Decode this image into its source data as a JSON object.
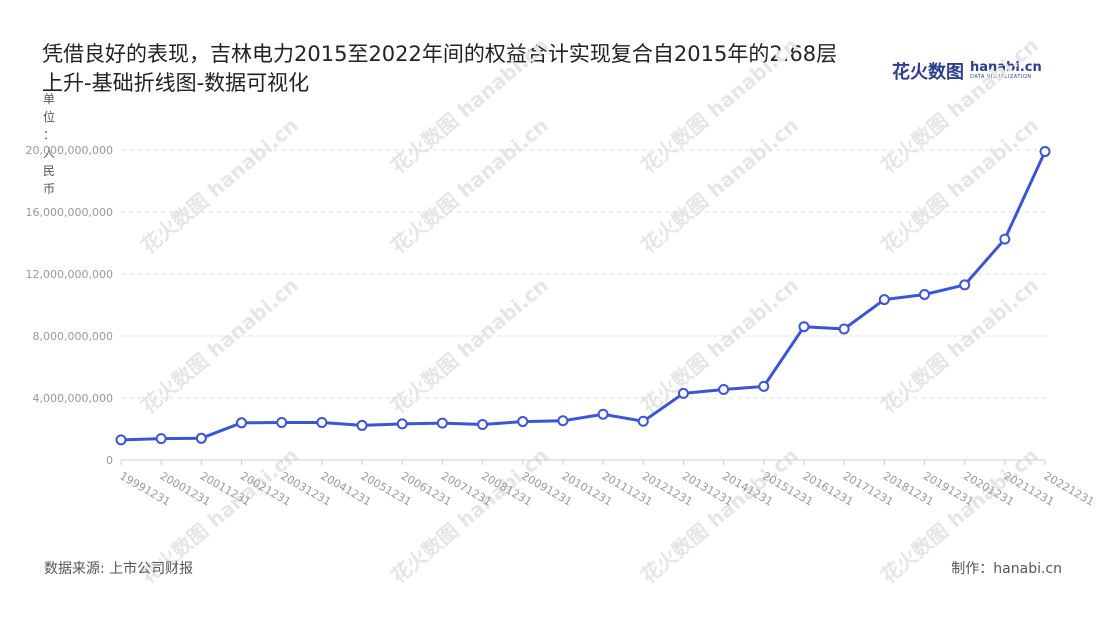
{
  "header": {
    "title": "凭借良好的表现，吉林电力2015至2022年间的权益合计实现复合自2015年的2.68层上升-基础折线图-数据可视化",
    "brand_cn": "花火数图",
    "brand_en": "hanabi.cn",
    "brand_sub": "DATA VISUALIZATION"
  },
  "unit_label": "单位：人民币",
  "watermark": "花火数图 hanabi.cn",
  "footer": {
    "source": "数据来源: 上市公司财报",
    "credit": "制作：hanabi.cn"
  },
  "colors": {
    "line": "#3b55d9",
    "grid": "#dddddd",
    "axis_text": "#999999"
  },
  "chart_data": {
    "type": "line",
    "categories": [
      "19991231",
      "20001231",
      "20011231",
      "20021231",
      "20031231",
      "20041231",
      "20051231",
      "20061231",
      "20071231",
      "20081231",
      "20091231",
      "20101231",
      "20111231",
      "20121231",
      "20131231",
      "20141231",
      "20151231",
      "20161231",
      "20171231",
      "20181231",
      "20191231",
      "20201231",
      "20211231",
      "20221231"
    ],
    "values": [
      1300000000,
      1380000000,
      1400000000,
      2400000000,
      2420000000,
      2420000000,
      2230000000,
      2330000000,
      2380000000,
      2290000000,
      2480000000,
      2530000000,
      2950000000,
      2500000000,
      4300000000,
      4550000000,
      4750000000,
      8600000000,
      8450000000,
      10350000000,
      10680000000,
      11300000000,
      14250000000,
      19900000000
    ],
    "yticks": [
      "0",
      "4,000,000,000",
      "8,000,000,000",
      "12,000,000,000",
      "16,000,000,000",
      "20,000,000,000"
    ],
    "ylim": [
      0,
      20000000000
    ],
    "grid": true,
    "marker": "hollow-circle"
  }
}
